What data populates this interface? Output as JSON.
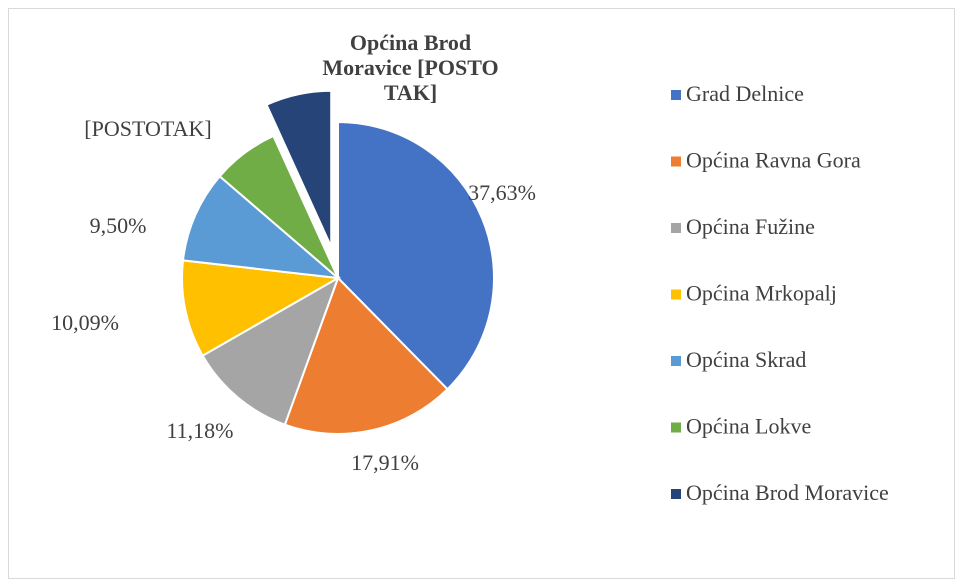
{
  "chart_data": {
    "type": "pie",
    "categories": [
      "Grad Delnice",
      "Općina Ravna Gora",
      "Općina Fužine",
      "Općina Mrkopalj",
      "Općina Skrad",
      "Općina Lokve",
      "Općina Brod Moravice"
    ],
    "values": [
      37.63,
      17.91,
      11.18,
      10.09,
      9.5,
      6.9,
      6.8
    ],
    "value_labels": [
      "37,63%",
      "17,91%",
      "11,18%",
      "10,09%",
      "9,50%",
      "[POSTOTAK]",
      "[POSTOTAK]"
    ],
    "colors": [
      "#4472c4",
      "#ed7d31",
      "#a5a5a5",
      "#ffc000",
      "#5b9bd5",
      "#70ad47",
      "#264478"
    ],
    "exploded": [
      6
    ],
    "legend": "right"
  }
}
